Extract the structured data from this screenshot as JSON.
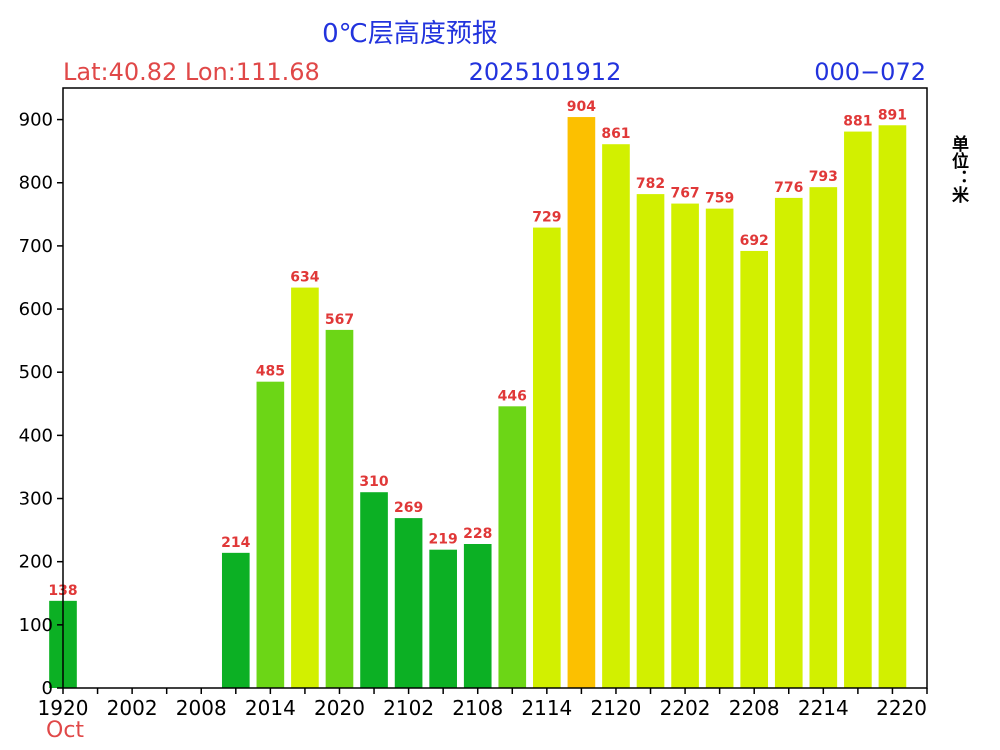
{
  "header": {
    "title": "0℃层高度预报",
    "location": "Lat:40.82 Lon:111.68",
    "init_time": "2025101912",
    "forecast_range": "000−072",
    "unit_label": "单位：米",
    "month_label": "Oct"
  },
  "colors": {
    "title": "#2233dd",
    "location": "#e04848",
    "init_time": "#2233dd",
    "forecast_range": "#2233dd",
    "value_label": "#e03838",
    "month_label": "#e04848",
    "axis": "#000000"
  },
  "chart_data": {
    "type": "bar",
    "title": "0℃层高度预报",
    "ylabel": "单位：米",
    "ylim": [
      0,
      950
    ],
    "yticks": [
      0,
      100,
      200,
      300,
      400,
      500,
      600,
      700,
      800,
      900
    ],
    "x_tick_labels": [
      "1920",
      "2002",
      "2008",
      "2014",
      "2020",
      "2102",
      "2108",
      "2114",
      "2120",
      "2202",
      "2208",
      "2214",
      "2220"
    ],
    "x_tick_step": 2,
    "grid": false,
    "bars": [
      {
        "value": 138,
        "color": "#0cb024"
      },
      {
        "value": null,
        "color": ""
      },
      {
        "value": null,
        "color": ""
      },
      {
        "value": null,
        "color": ""
      },
      {
        "value": null,
        "color": ""
      },
      {
        "value": 214,
        "color": "#0cb024"
      },
      {
        "value": 485,
        "color": "#6cd616"
      },
      {
        "value": 634,
        "color": "#d2f000"
      },
      {
        "value": 567,
        "color": "#6cd616"
      },
      {
        "value": 310,
        "color": "#0cb024"
      },
      {
        "value": 269,
        "color": "#0cb024"
      },
      {
        "value": 219,
        "color": "#0cb024"
      },
      {
        "value": 228,
        "color": "#0cb024"
      },
      {
        "value": 446,
        "color": "#6cd616"
      },
      {
        "value": 729,
        "color": "#d2f000"
      },
      {
        "value": 904,
        "color": "#fcc000"
      },
      {
        "value": 861,
        "color": "#d2f000"
      },
      {
        "value": 782,
        "color": "#d2f000"
      },
      {
        "value": 767,
        "color": "#d2f000"
      },
      {
        "value": 759,
        "color": "#d2f000"
      },
      {
        "value": 692,
        "color": "#d2f000"
      },
      {
        "value": 776,
        "color": "#d2f000"
      },
      {
        "value": 793,
        "color": "#d2f000"
      },
      {
        "value": 881,
        "color": "#d2f000"
      },
      {
        "value": 891,
        "color": "#d2f000"
      }
    ]
  }
}
